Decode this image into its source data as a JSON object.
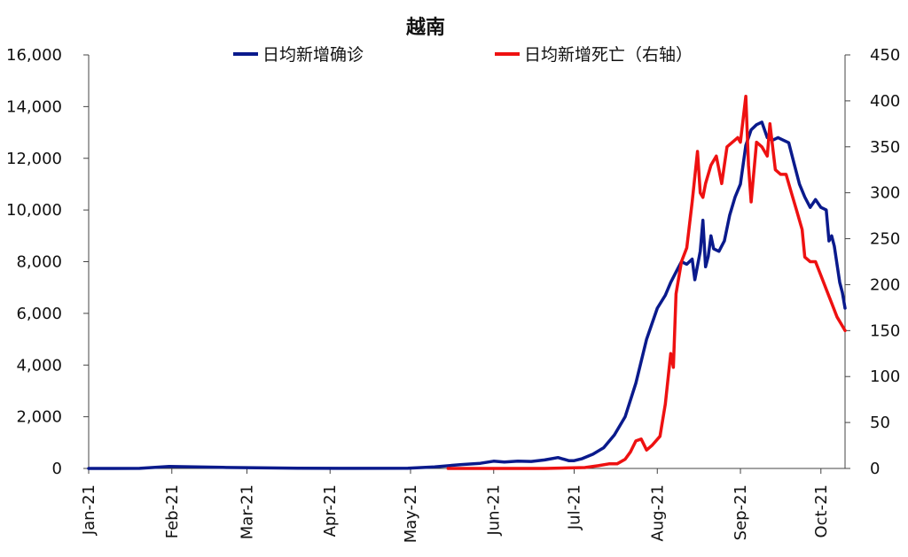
{
  "chart_data": {
    "type": "line",
    "title": "越南",
    "x_tick_labels": [
      "Jan-21",
      "Feb-21",
      "Mar-21",
      "Apr-21",
      "May-21",
      "Jun-21",
      "Jul-21",
      "Aug-21",
      "Sep-21",
      "Oct-21"
    ],
    "x_range": [
      "2021-01-01",
      "2021-10-10"
    ],
    "y_left": {
      "range": [
        0,
        16000
      ],
      "ticks": [
        "0",
        "2,000",
        "4,000",
        "6,000",
        "8,000",
        "10,000",
        "12,000",
        "14,000",
        "16,000"
      ]
    },
    "y_right": {
      "range": [
        0,
        450
      ],
      "ticks": [
        "0",
        "50",
        "100",
        "150",
        "200",
        "250",
        "300",
        "350",
        "400",
        "450"
      ]
    },
    "legend_position": "top",
    "grid": false,
    "series": [
      {
        "name": "日均新增确诊",
        "axis": "left",
        "color": "#0a1a8c",
        "points": [
          [
            "2021-01-01",
            0
          ],
          [
            "2021-01-20",
            5
          ],
          [
            "2021-01-31",
            80
          ],
          [
            "2021-02-10",
            60
          ],
          [
            "2021-02-20",
            40
          ],
          [
            "2021-03-01",
            30
          ],
          [
            "2021-03-20",
            10
          ],
          [
            "2021-04-10",
            5
          ],
          [
            "2021-04-30",
            10
          ],
          [
            "2021-05-10",
            60
          ],
          [
            "2021-05-20",
            150
          ],
          [
            "2021-05-27",
            200
          ],
          [
            "2021-06-01",
            280
          ],
          [
            "2021-06-05",
            250
          ],
          [
            "2021-06-10",
            280
          ],
          [
            "2021-06-15",
            270
          ],
          [
            "2021-06-20",
            330
          ],
          [
            "2021-06-25",
            420
          ],
          [
            "2021-06-29",
            300
          ],
          [
            "2021-07-01",
            300
          ],
          [
            "2021-07-04",
            380
          ],
          [
            "2021-07-08",
            550
          ],
          [
            "2021-07-12",
            800
          ],
          [
            "2021-07-16",
            1300
          ],
          [
            "2021-07-20",
            2000
          ],
          [
            "2021-07-24",
            3300
          ],
          [
            "2021-07-28",
            5000
          ],
          [
            "2021-08-01",
            6200
          ],
          [
            "2021-08-04",
            6700
          ],
          [
            "2021-08-06",
            7200
          ],
          [
            "2021-08-08",
            7600
          ],
          [
            "2021-08-10",
            8000
          ],
          [
            "2021-08-12",
            7900
          ],
          [
            "2021-08-14",
            8100
          ],
          [
            "2021-08-15",
            7300
          ],
          [
            "2021-08-17",
            8400
          ],
          [
            "2021-08-18",
            9600
          ],
          [
            "2021-08-19",
            7800
          ],
          [
            "2021-08-20",
            8200
          ],
          [
            "2021-08-21",
            9000
          ],
          [
            "2021-08-22",
            8500
          ],
          [
            "2021-08-24",
            8400
          ],
          [
            "2021-08-26",
            8800
          ],
          [
            "2021-08-28",
            9800
          ],
          [
            "2021-08-30",
            10500
          ],
          [
            "2021-09-01",
            11000
          ],
          [
            "2021-09-03",
            12500
          ],
          [
            "2021-09-05",
            13100
          ],
          [
            "2021-09-07",
            13300
          ],
          [
            "2021-09-09",
            13400
          ],
          [
            "2021-09-11",
            12800
          ],
          [
            "2021-09-13",
            12700
          ],
          [
            "2021-09-15",
            12800
          ],
          [
            "2021-09-17",
            12700
          ],
          [
            "2021-09-19",
            12600
          ],
          [
            "2021-09-21",
            11800
          ],
          [
            "2021-09-23",
            11000
          ],
          [
            "2021-09-25",
            10500
          ],
          [
            "2021-09-27",
            10100
          ],
          [
            "2021-09-29",
            10400
          ],
          [
            "2021-10-01",
            10100
          ],
          [
            "2021-10-03",
            10000
          ],
          [
            "2021-10-04",
            8800
          ],
          [
            "2021-10-05",
            9000
          ],
          [
            "2021-10-06",
            8600
          ],
          [
            "2021-10-08",
            7200
          ],
          [
            "2021-10-09",
            6800
          ],
          [
            "2021-10-10",
            6200
          ]
        ]
      },
      {
        "name": "日均新增死亡（右轴）",
        "axis": "right",
        "color": "#ee1111",
        "points": [
          [
            "2021-05-15",
            0
          ],
          [
            "2021-06-20",
            0
          ],
          [
            "2021-07-05",
            1
          ],
          [
            "2021-07-10",
            3
          ],
          [
            "2021-07-14",
            5
          ],
          [
            "2021-07-17",
            5
          ],
          [
            "2021-07-20",
            10
          ],
          [
            "2021-07-22",
            18
          ],
          [
            "2021-07-24",
            30
          ],
          [
            "2021-07-26",
            32
          ],
          [
            "2021-07-28",
            20
          ],
          [
            "2021-07-30",
            25
          ],
          [
            "2021-08-02",
            35
          ],
          [
            "2021-08-04",
            70
          ],
          [
            "2021-08-06",
            125
          ],
          [
            "2021-08-07",
            110
          ],
          [
            "2021-08-08",
            190
          ],
          [
            "2021-08-10",
            225
          ],
          [
            "2021-08-12",
            240
          ],
          [
            "2021-08-14",
            290
          ],
          [
            "2021-08-16",
            345
          ],
          [
            "2021-08-17",
            300
          ],
          [
            "2021-08-18",
            295
          ],
          [
            "2021-08-19",
            310
          ],
          [
            "2021-08-21",
            330
          ],
          [
            "2021-08-23",
            340
          ],
          [
            "2021-08-25",
            310
          ],
          [
            "2021-08-27",
            350
          ],
          [
            "2021-08-29",
            355
          ],
          [
            "2021-08-31",
            360
          ],
          [
            "2021-09-01",
            355
          ],
          [
            "2021-09-03",
            405
          ],
          [
            "2021-09-04",
            330
          ],
          [
            "2021-09-05",
            290
          ],
          [
            "2021-09-07",
            355
          ],
          [
            "2021-09-09",
            350
          ],
          [
            "2021-09-11",
            340
          ],
          [
            "2021-09-12",
            375
          ],
          [
            "2021-09-14",
            325
          ],
          [
            "2021-09-16",
            320
          ],
          [
            "2021-09-18",
            320
          ],
          [
            "2021-09-20",
            300
          ],
          [
            "2021-09-22",
            280
          ],
          [
            "2021-09-24",
            260
          ],
          [
            "2021-09-25",
            230
          ],
          [
            "2021-09-27",
            225
          ],
          [
            "2021-09-29",
            225
          ],
          [
            "2021-10-01",
            210
          ],
          [
            "2021-10-03",
            195
          ],
          [
            "2021-10-05",
            180
          ],
          [
            "2021-10-07",
            165
          ],
          [
            "2021-10-09",
            155
          ],
          [
            "2021-10-10",
            150
          ]
        ]
      }
    ]
  }
}
